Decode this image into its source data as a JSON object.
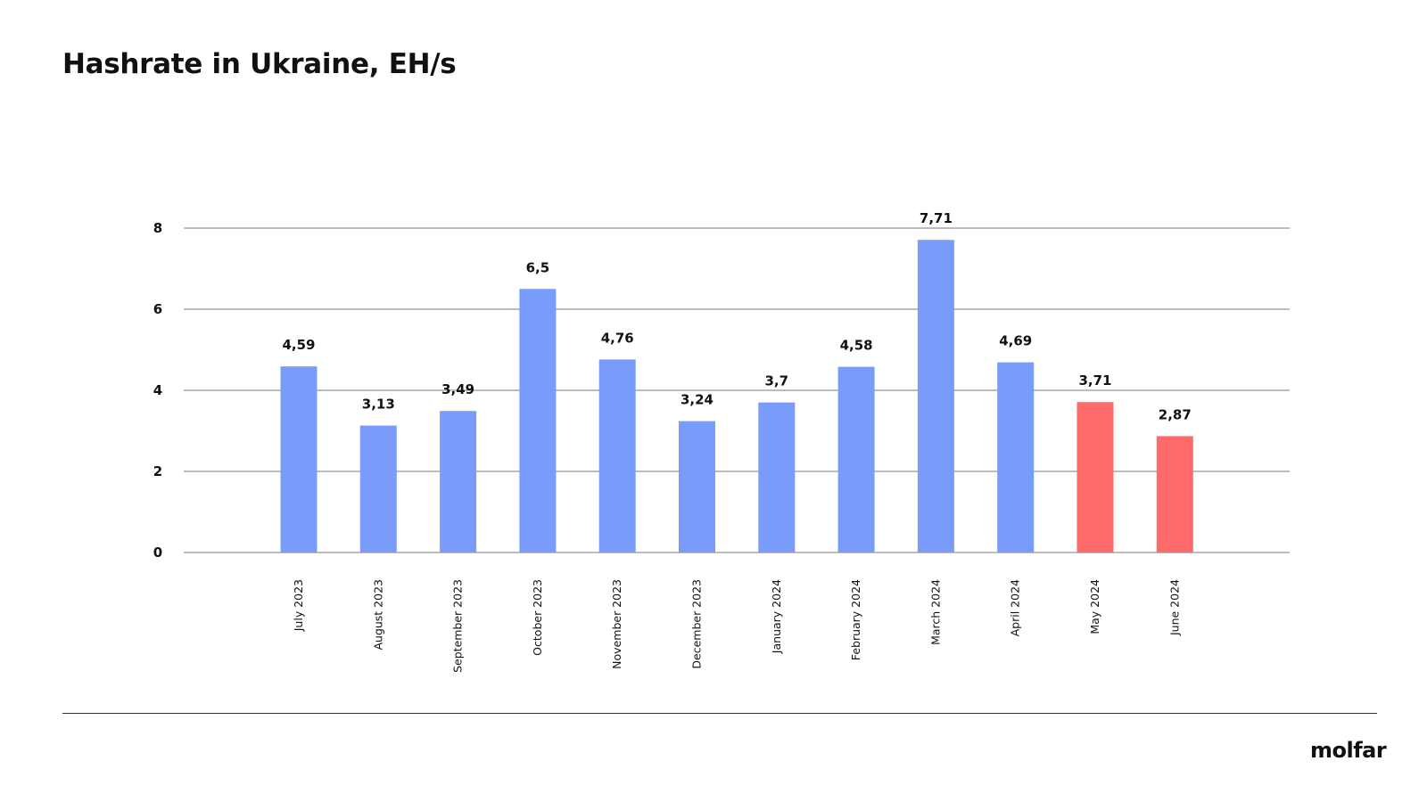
{
  "page": {
    "title": "Hashrate in Ukraine, EH/s",
    "brand": "molfar"
  },
  "chart_data": {
    "type": "bar",
    "title": "Hashrate in Ukraine, EH/s",
    "xlabel": "",
    "ylabel": "",
    "ylim": [
      0,
      8
    ],
    "y_ticks": [
      0,
      2,
      4,
      6,
      8
    ],
    "grid": true,
    "decimal_separator": ",",
    "categories": [
      "July 2023",
      "August 2023",
      "September 2023",
      "October 2023",
      "November 2023",
      "December 2023",
      "January 2024",
      "February 2024",
      "March 2024",
      "April 2024",
      "May 2024",
      "June 2024"
    ],
    "values": [
      4.59,
      3.13,
      3.49,
      6.5,
      4.76,
      3.24,
      3.7,
      4.58,
      7.71,
      4.69,
      3.71,
      2.87
    ],
    "data_labels": [
      "4,59",
      "3,13",
      "3,49",
      "6,5",
      "4,76",
      "3,24",
      "3,7",
      "4,58",
      "7,71",
      "4,69",
      "3,71",
      "2,87"
    ],
    "colors": {
      "default": "#799cfb",
      "highlight": "#ff6b6b",
      "gridline": "#7a7a7a"
    },
    "bar_colors": [
      "#799cfb",
      "#799cfb",
      "#799cfb",
      "#799cfb",
      "#799cfb",
      "#799cfb",
      "#799cfb",
      "#799cfb",
      "#799cfb",
      "#799cfb",
      "#ff6b6b",
      "#ff6b6b"
    ]
  }
}
